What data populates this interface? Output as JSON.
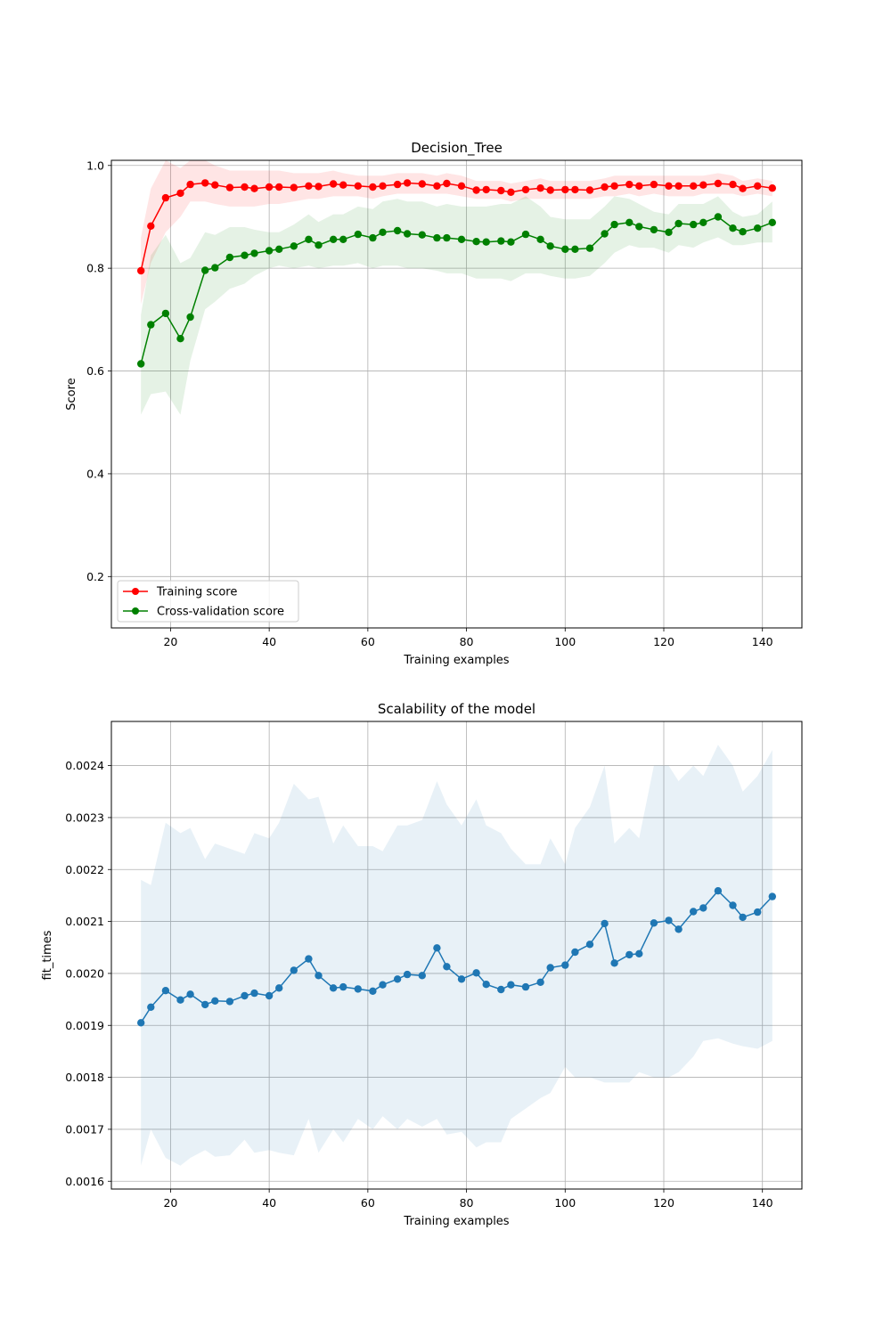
{
  "chart_data": [
    {
      "type": "line",
      "title": "Decision_Tree",
      "xlabel": "Training examples",
      "ylabel": "Score",
      "xlim": [
        8,
        148
      ],
      "ylim": [
        0.1,
        1.01
      ],
      "xticks": [
        20,
        40,
        60,
        80,
        100,
        120,
        140
      ],
      "yticks": [
        0.2,
        0.4,
        0.6,
        0.8,
        1.0
      ],
      "ytick_labels": [
        "0.2",
        "0.4",
        "0.6",
        "0.8",
        "1.0"
      ],
      "grid": true,
      "legend": "lower-left",
      "x": [
        14,
        16,
        19,
        22,
        24,
        27,
        29,
        32,
        35,
        37,
        40,
        42,
        45,
        48,
        50,
        53,
        55,
        58,
        61,
        63,
        66,
        68,
        71,
        74,
        76,
        79,
        82,
        84,
        87,
        89,
        92,
        95,
        97,
        100,
        102,
        105,
        108,
        110,
        113,
        115,
        118,
        121,
        123,
        126,
        128,
        131,
        134,
        136,
        139,
        142
      ],
      "series": [
        {
          "name": "Training score",
          "color": "#ff0000",
          "band_color": "#ff0000",
          "values": [
            0.795,
            0.882,
            0.937,
            0.946,
            0.963,
            0.966,
            0.962,
            0.957,
            0.958,
            0.955,
            0.958,
            0.958,
            0.957,
            0.96,
            0.959,
            0.964,
            0.962,
            0.96,
            0.958,
            0.96,
            0.963,
            0.966,
            0.964,
            0.96,
            0.965,
            0.96,
            0.952,
            0.953,
            0.951,
            0.948,
            0.953,
            0.956,
            0.952,
            0.953,
            0.953,
            0.952,
            0.958,
            0.96,
            0.963,
            0.96,
            0.963,
            0.96,
            0.96,
            0.96,
            0.962,
            0.965,
            0.963,
            0.955,
            0.96,
            0.956
          ],
          "lower": [
            0.73,
            0.81,
            0.87,
            0.9,
            0.93,
            0.93,
            0.925,
            0.92,
            0.92,
            0.92,
            0.925,
            0.925,
            0.93,
            0.935,
            0.935,
            0.94,
            0.94,
            0.94,
            0.935,
            0.94,
            0.945,
            0.945,
            0.945,
            0.945,
            0.945,
            0.94,
            0.935,
            0.935,
            0.935,
            0.93,
            0.935,
            0.935,
            0.935,
            0.935,
            0.935,
            0.935,
            0.94,
            0.94,
            0.945,
            0.94,
            0.945,
            0.94,
            0.94,
            0.94,
            0.945,
            0.945,
            0.945,
            0.94,
            0.945,
            0.94
          ],
          "upper": [
            0.86,
            0.955,
            1.01,
            0.995,
            1.01,
            1.01,
            1.0,
            0.99,
            0.99,
            0.99,
            0.99,
            0.99,
            0.985,
            0.985,
            0.985,
            0.99,
            0.985,
            0.98,
            0.98,
            0.98,
            0.985,
            0.985,
            0.985,
            0.98,
            0.985,
            0.98,
            0.97,
            0.97,
            0.97,
            0.965,
            0.97,
            0.975,
            0.97,
            0.97,
            0.97,
            0.97,
            0.975,
            0.98,
            0.98,
            0.98,
            0.98,
            0.98,
            0.98,
            0.98,
            0.98,
            0.985,
            0.98,
            0.97,
            0.975,
            0.97
          ]
        },
        {
          "name": "Cross-validation score",
          "color": "#008000",
          "band_color": "#008000",
          "values": [
            0.614,
            0.69,
            0.712,
            0.663,
            0.705,
            0.796,
            0.801,
            0.821,
            0.825,
            0.829,
            0.834,
            0.837,
            0.843,
            0.856,
            0.845,
            0.856,
            0.856,
            0.866,
            0.859,
            0.87,
            0.873,
            0.867,
            0.865,
            0.859,
            0.859,
            0.856,
            0.852,
            0.851,
            0.853,
            0.851,
            0.866,
            0.856,
            0.843,
            0.837,
            0.837,
            0.839,
            0.867,
            0.885,
            0.889,
            0.881,
            0.875,
            0.87,
            0.887,
            0.885,
            0.889,
            0.9,
            0.878,
            0.871,
            0.878,
            0.889
          ],
          "lower": [
            0.515,
            0.555,
            0.56,
            0.515,
            0.62,
            0.72,
            0.735,
            0.76,
            0.77,
            0.785,
            0.8,
            0.805,
            0.8,
            0.805,
            0.8,
            0.805,
            0.805,
            0.81,
            0.8,
            0.805,
            0.805,
            0.8,
            0.8,
            0.795,
            0.79,
            0.79,
            0.78,
            0.78,
            0.78,
            0.775,
            0.79,
            0.79,
            0.785,
            0.78,
            0.78,
            0.785,
            0.81,
            0.83,
            0.845,
            0.84,
            0.84,
            0.83,
            0.845,
            0.84,
            0.85,
            0.86,
            0.845,
            0.845,
            0.85,
            0.85
          ],
          "upper": [
            0.71,
            0.825,
            0.865,
            0.81,
            0.82,
            0.87,
            0.865,
            0.88,
            0.88,
            0.875,
            0.87,
            0.87,
            0.885,
            0.905,
            0.89,
            0.905,
            0.905,
            0.92,
            0.915,
            0.93,
            0.935,
            0.93,
            0.93,
            0.92,
            0.925,
            0.92,
            0.92,
            0.92,
            0.925,
            0.925,
            0.94,
            0.92,
            0.9,
            0.895,
            0.895,
            0.895,
            0.92,
            0.94,
            0.935,
            0.925,
            0.91,
            0.905,
            0.925,
            0.925,
            0.925,
            0.94,
            0.91,
            0.9,
            0.905,
            0.93
          ]
        }
      ]
    },
    {
      "type": "line",
      "title": "Scalability of the model",
      "xlabel": "Training examples",
      "ylabel": "fit_times",
      "xlim": [
        8,
        148
      ],
      "ylim": [
        0.001585,
        0.002485
      ],
      "xticks": [
        20,
        40,
        60,
        80,
        100,
        120,
        140
      ],
      "yticks": [
        0.0016,
        0.0017,
        0.0018,
        0.0019,
        0.002,
        0.0021,
        0.0022,
        0.0023,
        0.0024
      ],
      "ytick_labels": [
        "0.0016",
        "0.0017",
        "0.0018",
        "0.0019",
        "0.0020",
        "0.0021",
        "0.0022",
        "0.0023",
        "0.0024"
      ],
      "grid": true,
      "x": [
        14,
        16,
        19,
        22,
        24,
        27,
        29,
        32,
        35,
        37,
        40,
        42,
        45,
        48,
        50,
        53,
        55,
        58,
        61,
        63,
        66,
        68,
        71,
        74,
        76,
        79,
        82,
        84,
        87,
        89,
        92,
        95,
        97,
        100,
        102,
        105,
        108,
        110,
        113,
        115,
        118,
        121,
        123,
        126,
        128,
        131,
        134,
        136,
        139,
        142
      ],
      "series": [
        {
          "color": "#1f77b4",
          "band_color": "#1f77b4",
          "values": [
            0.001905,
            0.001935,
            0.001967,
            0.001949,
            0.00196,
            0.00194,
            0.001947,
            0.001946,
            0.001957,
            0.001962,
            0.001957,
            0.001972,
            0.002006,
            0.002028,
            0.001996,
            0.001972,
            0.001974,
            0.00197,
            0.001966,
            0.001978,
            0.001989,
            0.001998,
            0.001996,
            0.002049,
            0.002013,
            0.001989,
            0.002001,
            0.001979,
            0.001969,
            0.001978,
            0.001974,
            0.001983,
            0.002011,
            0.002016,
            0.002041,
            0.002056,
            0.002096,
            0.00202,
            0.002036,
            0.002038,
            0.002097,
            0.002102,
            0.002085,
            0.002119,
            0.002126,
            0.002159,
            0.002131,
            0.002108,
            0.002118,
            0.002148
          ],
          "lower": [
            0.00163,
            0.0017,
            0.001645,
            0.00163,
            0.001645,
            0.00166,
            0.001647,
            0.00165,
            0.00168,
            0.001655,
            0.00166,
            0.001655,
            0.00165,
            0.00172,
            0.001655,
            0.0017,
            0.001675,
            0.00172,
            0.0017,
            0.001725,
            0.0017,
            0.00172,
            0.001705,
            0.00172,
            0.00169,
            0.001695,
            0.001665,
            0.001675,
            0.001675,
            0.00172,
            0.00174,
            0.00176,
            0.00177,
            0.00182,
            0.0018,
            0.0018,
            0.00179,
            0.00179,
            0.00179,
            0.00181,
            0.0018,
            0.0018,
            0.00181,
            0.00184,
            0.00187,
            0.001875,
            0.001865,
            0.00186,
            0.001855,
            0.00187
          ],
          "upper": [
            0.00218,
            0.00217,
            0.00229,
            0.00227,
            0.00228,
            0.00222,
            0.00225,
            0.00224,
            0.00223,
            0.00227,
            0.00226,
            0.00229,
            0.002365,
            0.002335,
            0.00234,
            0.00225,
            0.002285,
            0.002245,
            0.002245,
            0.002235,
            0.002285,
            0.002285,
            0.002295,
            0.00237,
            0.002325,
            0.002285,
            0.002335,
            0.002285,
            0.00227,
            0.00224,
            0.00221,
            0.00221,
            0.00226,
            0.00221,
            0.00228,
            0.00232,
            0.0024,
            0.00225,
            0.00228,
            0.00226,
            0.0024,
            0.0024,
            0.00237,
            0.0024,
            0.00238,
            0.00244,
            0.0024,
            0.00235,
            0.00238,
            0.00243
          ]
        }
      ]
    }
  ]
}
